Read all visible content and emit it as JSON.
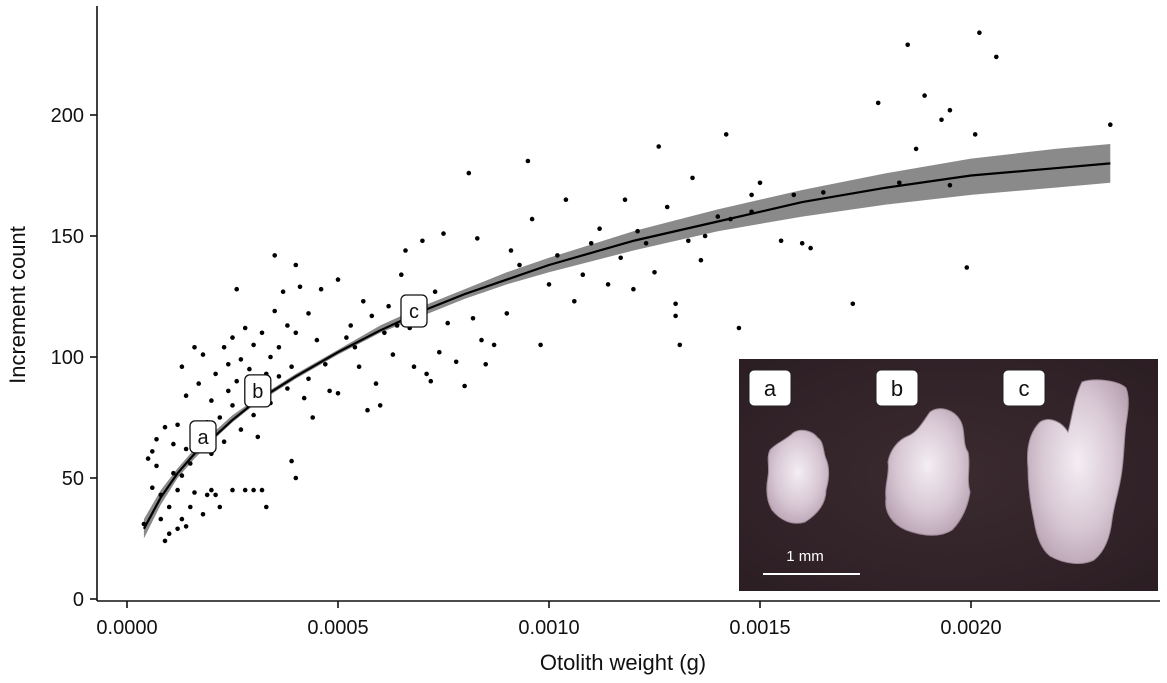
{
  "chart_data": {
    "type": "scatter",
    "xlabel": "Otolith weight (g)",
    "ylabel": "Increment count",
    "xlim": [
      -8e-05,
      0.00246
    ],
    "ylim": [
      -2,
      240
    ],
    "xticks": [
      0.0,
      0.0005,
      0.001,
      0.0015,
      0.002
    ],
    "xtick_labels": [
      "0.0000",
      "0.0005",
      "0.0010",
      "0.0015",
      "0.0020"
    ],
    "yticks": [
      0,
      50,
      100,
      150,
      200
    ],
    "ytick_labels": [
      "0",
      "50",
      "100",
      "150",
      "200"
    ],
    "grid": false,
    "legend": "none",
    "colors": {
      "points": "#000000",
      "fit_line": "#000000",
      "confidence_band": "#8a8a8a",
      "photo_bg": "#3a2a30"
    },
    "fit": {
      "description_label": "power-law fit with confidence band",
      "x": [
        4e-05,
        8e-05,
        0.00012,
        0.00016,
        0.0002,
        0.00025,
        0.0003,
        0.0004,
        0.0005,
        0.0006,
        0.0007,
        0.0008,
        0.0009,
        0.001,
        0.0012,
        0.0014,
        0.0016,
        0.0018,
        0.002,
        0.0022,
        0.00233
      ],
      "y": [
        29,
        42,
        52,
        60,
        66,
        74,
        81,
        92,
        102,
        111,
        119,
        126,
        132,
        138,
        148,
        156,
        164,
        170,
        175,
        178,
        180
      ],
      "lower": [
        25,
        39,
        50,
        58,
        65,
        73,
        80,
        91,
        101,
        110,
        117,
        124,
        130,
        135,
        144,
        152,
        158,
        163,
        167,
        170,
        172
      ],
      "upper": [
        33,
        45,
        54,
        62,
        68,
        76,
        82,
        93,
        103,
        113,
        121,
        128,
        135,
        141,
        152,
        161,
        169,
        176,
        182,
        186,
        188
      ]
    },
    "points": [
      [
        4e-05,
        31
      ],
      [
        5e-05,
        58
      ],
      [
        6e-05,
        46
      ],
      [
        6e-05,
        61
      ],
      [
        7e-05,
        66
      ],
      [
        7e-05,
        55
      ],
      [
        8e-05,
        33
      ],
      [
        8e-05,
        43
      ],
      [
        9e-05,
        24
      ],
      [
        9e-05,
        71
      ],
      [
        0.0001,
        27
      ],
      [
        0.0001,
        38
      ],
      [
        0.00011,
        52
      ],
      [
        0.00011,
        64
      ],
      [
        0.00012,
        29
      ],
      [
        0.00012,
        45
      ],
      [
        0.00012,
        72
      ],
      [
        0.00013,
        33
      ],
      [
        0.00013,
        51
      ],
      [
        0.00013,
        96
      ],
      [
        0.00014,
        30
      ],
      [
        0.00014,
        62
      ],
      [
        0.00014,
        84
      ],
      [
        0.00015,
        38
      ],
      [
        0.00015,
        56
      ],
      [
        0.00016,
        104
      ],
      [
        0.00016,
        44
      ],
      [
        0.00017,
        69
      ],
      [
        0.00017,
        89
      ],
      [
        0.00018,
        35
      ],
      [
        0.00018,
        101
      ],
      [
        0.00019,
        43
      ],
      [
        0.00019,
        73
      ],
      [
        0.0002,
        45
      ],
      [
        0.0002,
        82
      ],
      [
        0.0002,
        60
      ],
      [
        0.00021,
        93
      ],
      [
        0.00021,
        43
      ],
      [
        0.00022,
        38
      ],
      [
        0.00022,
        75
      ],
      [
        0.00023,
        65
      ],
      [
        0.00023,
        104
      ],
      [
        0.00024,
        86
      ],
      [
        0.00024,
        97
      ],
      [
        0.00025,
        80
      ],
      [
        0.00025,
        108
      ],
      [
        0.00025,
        45
      ],
      [
        0.00026,
        128
      ],
      [
        0.00026,
        90
      ],
      [
        0.00027,
        70
      ],
      [
        0.00027,
        99
      ],
      [
        0.00028,
        45
      ],
      [
        0.00028,
        112
      ],
      [
        0.00029,
        83
      ],
      [
        0.00029,
        95
      ],
      [
        0.0003,
        45
      ],
      [
        0.0003,
        76
      ],
      [
        0.0003,
        105
      ],
      [
        0.00031,
        88
      ],
      [
        0.00031,
        67
      ],
      [
        0.00032,
        45
      ],
      [
        0.00032,
        110
      ],
      [
        0.00033,
        93
      ],
      [
        0.00033,
        38
      ],
      [
        0.00034,
        100
      ],
      [
        0.00034,
        81
      ],
      [
        0.00035,
        142
      ],
      [
        0.00035,
        119
      ],
      [
        0.00036,
        92
      ],
      [
        0.00036,
        104
      ],
      [
        0.00037,
        127
      ],
      [
        0.00038,
        87
      ],
      [
        0.00038,
        113
      ],
      [
        0.00039,
        57
      ],
      [
        0.00039,
        96
      ],
      [
        0.0004,
        138
      ],
      [
        0.0004,
        110
      ],
      [
        0.0004,
        50
      ],
      [
        0.00041,
        129
      ],
      [
        0.00042,
        83
      ],
      [
        0.00043,
        91
      ],
      [
        0.00043,
        118
      ],
      [
        0.00044,
        75
      ],
      [
        0.00045,
        107
      ],
      [
        0.00046,
        128
      ],
      [
        0.00047,
        97
      ],
      [
        0.00048,
        86
      ],
      [
        0.0005,
        132
      ],
      [
        0.0005,
        85
      ],
      [
        0.00052,
        108
      ],
      [
        0.00053,
        113
      ],
      [
        0.00054,
        104
      ],
      [
        0.00055,
        96
      ],
      [
        0.00056,
        123
      ],
      [
        0.00057,
        78
      ],
      [
        0.00058,
        117
      ],
      [
        0.00059,
        89
      ],
      [
        0.0006,
        80
      ],
      [
        0.00061,
        110
      ],
      [
        0.00062,
        121
      ],
      [
        0.00063,
        101
      ],
      [
        0.00064,
        113
      ],
      [
        0.00065,
        134
      ],
      [
        0.00066,
        144
      ],
      [
        0.00067,
        112
      ],
      [
        0.00068,
        96
      ],
      [
        0.0007,
        148
      ],
      [
        0.00071,
        93
      ],
      [
        0.00072,
        90
      ],
      [
        0.00073,
        127
      ],
      [
        0.00074,
        102
      ],
      [
        0.00075,
        151
      ],
      [
        0.00076,
        114
      ],
      [
        0.00078,
        98
      ],
      [
        0.0008,
        88
      ],
      [
        0.00081,
        176
      ],
      [
        0.00082,
        116
      ],
      [
        0.00083,
        149
      ],
      [
        0.00084,
        107
      ],
      [
        0.00085,
        97
      ],
      [
        0.00087,
        105
      ],
      [
        0.0009,
        118
      ],
      [
        0.00091,
        144
      ],
      [
        0.00093,
        138
      ],
      [
        0.00095,
        181
      ],
      [
        0.00096,
        157
      ],
      [
        0.00098,
        105
      ],
      [
        0.001,
        130
      ],
      [
        0.00102,
        142
      ],
      [
        0.00104,
        165
      ],
      [
        0.00106,
        123
      ],
      [
        0.00108,
        134
      ],
      [
        0.0011,
        147
      ],
      [
        0.00112,
        153
      ],
      [
        0.00114,
        130
      ],
      [
        0.00117,
        141
      ],
      [
        0.00118,
        165
      ],
      [
        0.0012,
        128
      ],
      [
        0.00121,
        152
      ],
      [
        0.00123,
        147
      ],
      [
        0.00125,
        135
      ],
      [
        0.00126,
        187
      ],
      [
        0.00128,
        162
      ],
      [
        0.0013,
        117
      ],
      [
        0.0013,
        122
      ],
      [
        0.00131,
        105
      ],
      [
        0.00133,
        148
      ],
      [
        0.00134,
        174
      ],
      [
        0.00136,
        140
      ],
      [
        0.00137,
        150
      ],
      [
        0.0014,
        158
      ],
      [
        0.00142,
        192
      ],
      [
        0.00143,
        157
      ],
      [
        0.00145,
        112
      ],
      [
        0.00148,
        160
      ],
      [
        0.00148,
        167
      ],
      [
        0.0015,
        172
      ],
      [
        0.00155,
        148
      ],
      [
        0.00158,
        167
      ],
      [
        0.0016,
        147
      ],
      [
        0.00162,
        145
      ],
      [
        0.00165,
        168
      ],
      [
        0.00172,
        122
      ],
      [
        0.00178,
        205
      ],
      [
        0.00183,
        172
      ],
      [
        0.00185,
        229
      ],
      [
        0.00187,
        186
      ],
      [
        0.00189,
        208
      ],
      [
        0.00193,
        198
      ],
      [
        0.00195,
        202
      ],
      [
        0.00195,
        171
      ],
      [
        0.00199,
        137
      ],
      [
        0.00201,
        192
      ],
      [
        0.00202,
        234
      ],
      [
        0.00206,
        224
      ],
      [
        0.00233,
        196
      ]
    ],
    "markers": [
      {
        "label": "a",
        "x": 0.00018,
        "y": 67
      },
      {
        "label": "b",
        "x": 0.00031,
        "y": 86
      },
      {
        "label": "c",
        "x": 0.00068,
        "y": 119
      }
    ]
  },
  "inset": {
    "labels": [
      "a",
      "b",
      "c"
    ],
    "scale_bar_label": "1 mm"
  }
}
